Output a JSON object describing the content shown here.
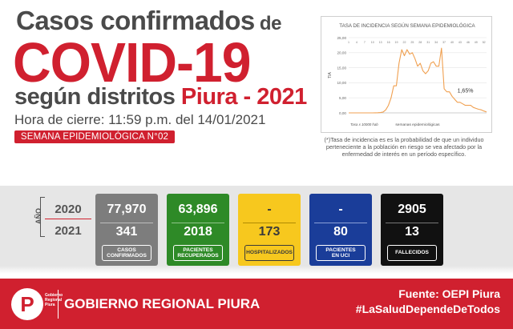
{
  "header": {
    "line1_main": "Casos confirmados",
    "line1_tail": " de",
    "line2": "COVID-19",
    "line3_main": "según distritos ",
    "line3_red": "Piura - 2021",
    "closing": "Hora de cierre: 11:59 p.m. del 14/01/2021",
    "week_badge": "SEMANA EPIDEMIOLÓGICA N°02"
  },
  "chart_note": "(*)Tasa de incidencia es es la probabilidad de que un individuo perteneciente a la población en riesgo se vea afectado por la enfermedad de interés en un período específico.",
  "stats": {
    "year_axis": "AÑO",
    "years": [
      "2020",
      "2021"
    ],
    "cards": [
      {
        "v2020": "77,970",
        "v2021": "341",
        "label": "CASOS\nCONFIRMADOS"
      },
      {
        "v2020": "63,896",
        "v2021": "2018",
        "label": "PACIENTES\nRECUPERADOS"
      },
      {
        "v2020": "-",
        "v2021": "173",
        "label": "HOSPITALIZADOS"
      },
      {
        "v2020": "-",
        "v2021": "80",
        "label": "PACIENTES\nEN UCI"
      },
      {
        "v2020": "2905",
        "v2021": "13",
        "label": "FALLECIDOS"
      }
    ]
  },
  "footer": {
    "logo_letter": "P",
    "logo_text": "Gobierno Regional Piura",
    "org": "GOBIERNO REGIONAL PIURA",
    "source": "Fuente: OEPI Piura",
    "hashtag": "#LaSaludDependeDeTodos"
  },
  "colors": {
    "brand_red": "#d0202f",
    "line_orange": "#f0a050",
    "grey_card": "#7d7d7d",
    "green_card": "#2e8a27",
    "yellow_card": "#f7c81e",
    "blue_card": "#1a3d99",
    "black_card": "#111111"
  },
  "chart_data": {
    "type": "line",
    "title": "TASA DE INCIDENCIA SEGÚN SEMANA EPIDEMIOLÓGICA",
    "xlabel": "semanas epidemiológicas",
    "ylabel": "TIA",
    "ylabel_note": "Tasa x 10000 hab",
    "xlim": [
      1,
      53
    ],
    "ylim": [
      0,
      25
    ],
    "y_ticks": [
      "0,00",
      "5,00",
      "10,00",
      "15,00",
      "20,00",
      "25,00"
    ],
    "x_ticks": [
      "1",
      "4",
      "7",
      "10",
      "13",
      "16",
      "19",
      "22",
      "25",
      "28",
      "31",
      "34",
      "37",
      "40",
      "43",
      "46",
      "49",
      "52"
    ],
    "annotation": {
      "text": "1,65%",
      "x": 45,
      "y": 5.2
    },
    "x": [
      1,
      2,
      3,
      4,
      5,
      6,
      7,
      8,
      9,
      10,
      11,
      12,
      13,
      14,
      15,
      16,
      17,
      18,
      19,
      20,
      21,
      22,
      23,
      24,
      25,
      26,
      27,
      28,
      29,
      30,
      31,
      32,
      33,
      34,
      35,
      36,
      37,
      38,
      39,
      40,
      41,
      42,
      43,
      44,
      45,
      46,
      47,
      48,
      49,
      50,
      51,
      52,
      53
    ],
    "values": [
      0,
      0,
      0,
      0,
      0,
      0,
      0,
      0,
      0,
      0,
      0.02,
      0.05,
      0.1,
      0.3,
      1,
      2.5,
      5,
      9,
      9,
      16.5,
      21,
      19,
      21,
      19.5,
      20,
      18,
      15.5,
      16.5,
      14,
      13,
      14,
      16.5,
      17,
      15.5,
      15.5,
      21.5,
      8,
      7,
      7,
      5.5,
      4.5,
      3.5,
      3.5,
      3,
      2.5,
      2.5,
      2.5,
      1.8,
      1.5,
      1.2,
      1,
      0.6,
      0.3
    ]
  }
}
